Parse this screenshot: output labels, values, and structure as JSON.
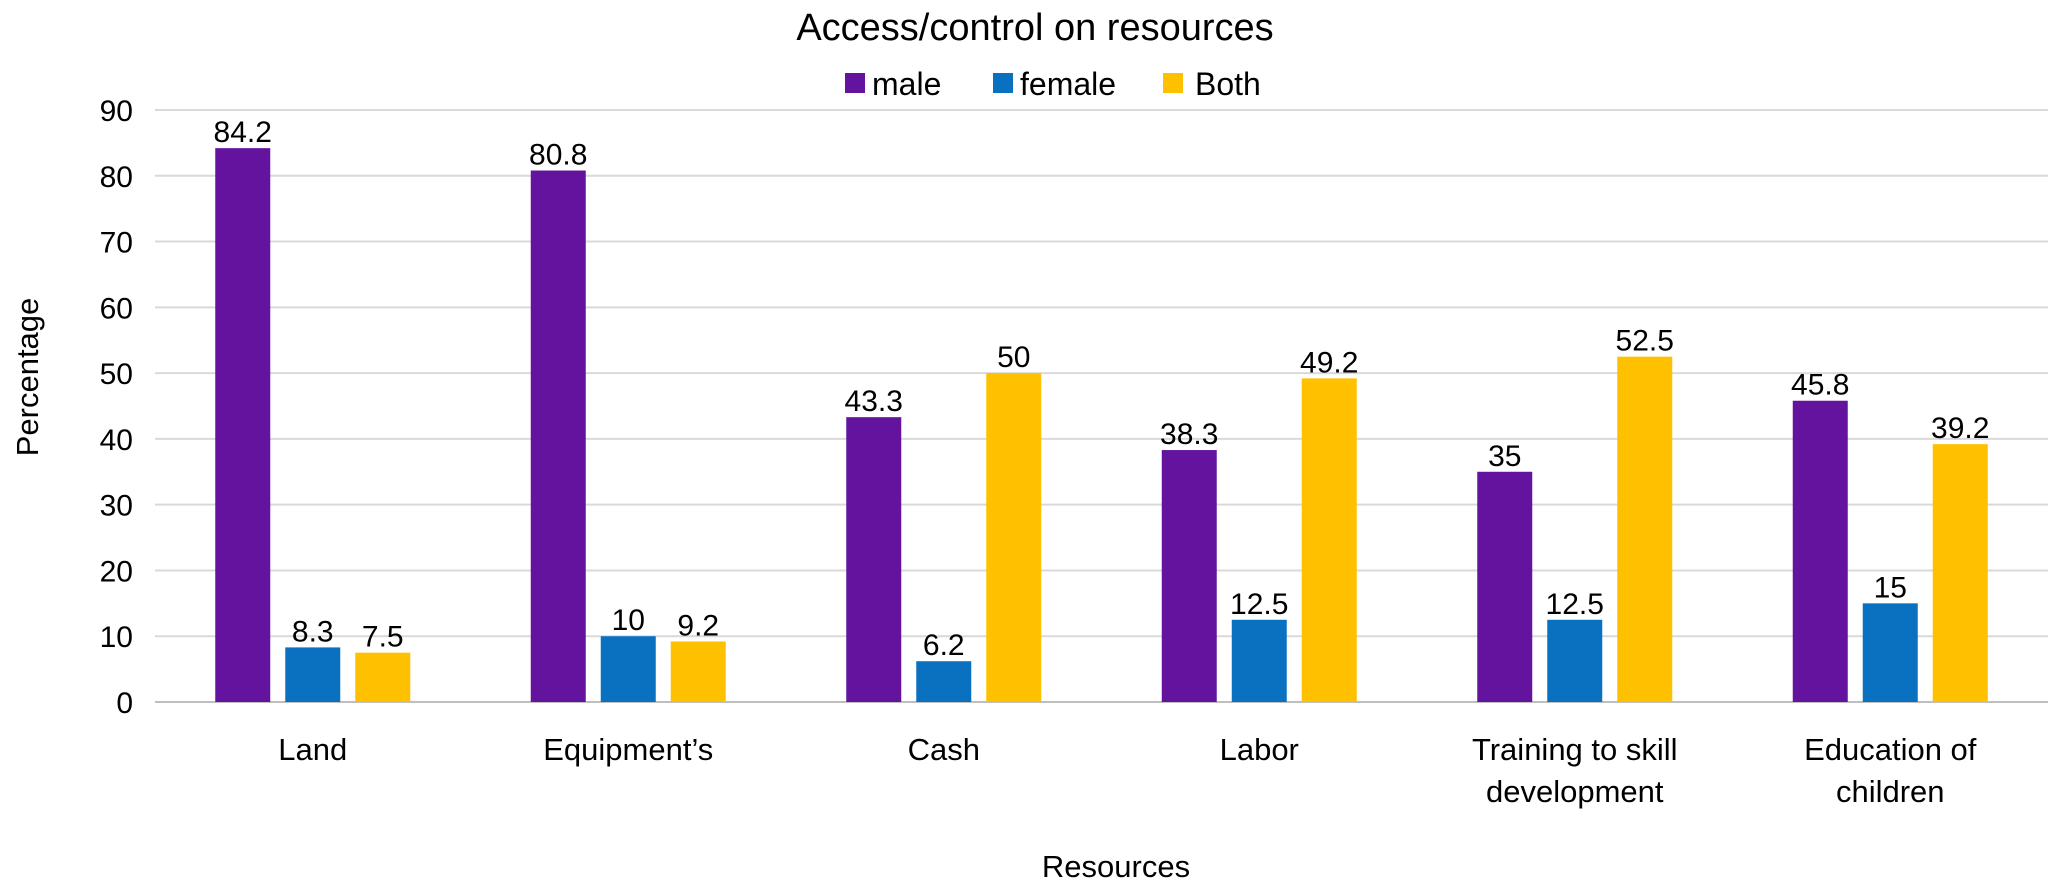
{
  "chart_data": {
    "type": "bar",
    "title": "Access/control on resources",
    "xlabel": "Resources",
    "ylabel": "Percentage",
    "ylim": [
      0,
      90
    ],
    "yticks": [
      0,
      10,
      20,
      30,
      40,
      50,
      60,
      70,
      80,
      90
    ],
    "grid": true,
    "legend_position": "top",
    "categories": [
      [
        "Land"
      ],
      [
        "Equipment’s"
      ],
      [
        "Cash"
      ],
      [
        "Labor"
      ],
      [
        "Training to skill",
        "development"
      ],
      [
        "Education of",
        "children"
      ]
    ],
    "series": [
      {
        "name": "male",
        "color": "#63139e",
        "values": [
          84.2,
          80.8,
          43.3,
          38.3,
          35,
          45.8
        ]
      },
      {
        "name": "female",
        "color": "#0a70c0",
        "values": [
          8.3,
          10,
          6.2,
          12.5,
          12.5,
          15
        ]
      },
      {
        "name": "Both",
        "color": "#ffc000",
        "values": [
          7.5,
          9.2,
          50,
          49.2,
          52.5,
          39.2
        ]
      }
    ]
  }
}
